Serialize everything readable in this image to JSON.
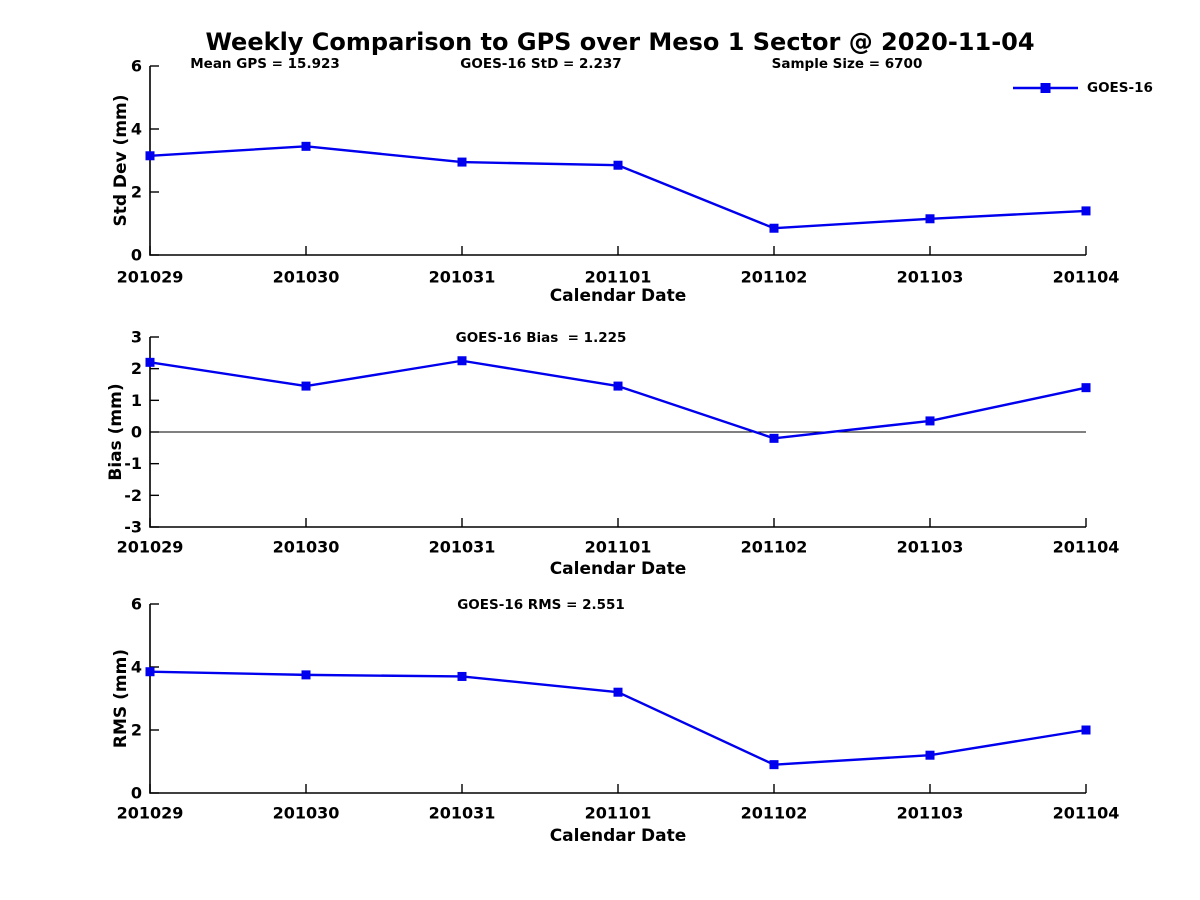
{
  "figure": {
    "title": "Weekly Comparison to GPS over Meso 1 Sector @ 2020-11-04",
    "background_color": "#FFFFFF",
    "line_color": "#0000EE",
    "axis_color": "#000000",
    "legend": {
      "label": "GOES-16",
      "position": "top-right"
    }
  },
  "chart_data": [
    {
      "type": "line",
      "panel": "std-dev",
      "categories": [
        "201029",
        "201030",
        "201031",
        "201101",
        "201102",
        "201103",
        "201104"
      ],
      "series": [
        {
          "name": "GOES-16",
          "values": [
            3.15,
            3.45,
            2.95,
            2.85,
            0.85,
            1.15,
            1.4
          ]
        }
      ],
      "annotations": [
        "Mean GPS = 15.923",
        "GOES-16 StD = 2.237",
        "Sample Size = 6700"
      ],
      "xlabel": "Calendar Date",
      "ylabel": "Std Dev (mm)",
      "ylim": [
        0,
        6
      ],
      "yticks": [
        0,
        2,
        4,
        6
      ],
      "grid": false,
      "marker": "square",
      "zero_line": false
    },
    {
      "type": "line",
      "panel": "bias",
      "categories": [
        "201029",
        "201030",
        "201031",
        "201101",
        "201102",
        "201103",
        "201104"
      ],
      "series": [
        {
          "name": "GOES-16",
          "values": [
            2.2,
            1.45,
            2.25,
            1.45,
            -0.2,
            0.35,
            1.4
          ]
        }
      ],
      "annotations": [
        "GOES-16 Bias  = 1.225"
      ],
      "xlabel": "Calendar Date",
      "ylabel": "Bias (mm)",
      "ylim": [
        -3,
        3
      ],
      "yticks": [
        3,
        2,
        1,
        0,
        -1,
        -2,
        -3
      ],
      "grid": false,
      "marker": "square",
      "zero_line": true
    },
    {
      "type": "line",
      "panel": "rms",
      "categories": [
        "201029",
        "201030",
        "201031",
        "201101",
        "201102",
        "201103",
        "201104"
      ],
      "series": [
        {
          "name": "GOES-16",
          "values": [
            3.85,
            3.75,
            3.7,
            3.2,
            0.9,
            1.2,
            2.0
          ]
        }
      ],
      "annotations": [
        "GOES-16 RMS = 2.551"
      ],
      "xlabel": "Calendar Date",
      "ylabel": "RMS (mm)",
      "ylim": [
        0,
        6
      ],
      "yticks": [
        0,
        2,
        4,
        6
      ],
      "grid": false,
      "marker": "square",
      "zero_line": false
    }
  ]
}
